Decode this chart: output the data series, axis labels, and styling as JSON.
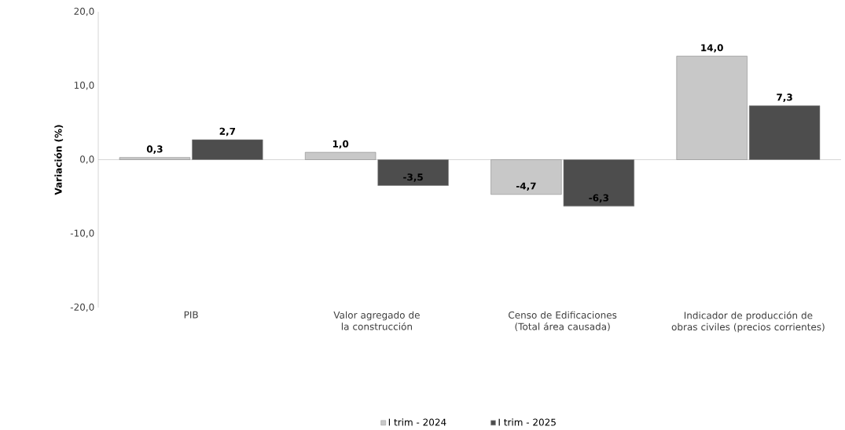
{
  "chart_data": {
    "type": "bar",
    "ylabel": "**Variación  (%)**",
    "categories": [
      "PIB",
      "Valor agregado de la construcción",
      "Censo de Edificaciones (Total área causada)",
      "Indicador de producción de obras civiles (precios corrientes)"
    ],
    "series": [
      {
        "name": "I trim - 2024",
        "color": "#c8c8c8",
        "values": [
          0.3,
          1.0,
          -4.7,
          14.0
        ],
        "value_labels": [
          "0,3",
          "1,0",
          "-4,7",
          "14,0"
        ]
      },
      {
        "name": "I trim - 2025",
        "color": "#4d4d4d",
        "values": [
          2.7,
          -3.5,
          -6.3,
          7.3
        ],
        "value_labels": [
          "2,7",
          "-3,5",
          "-6,3",
          "7,3"
        ]
      }
    ],
    "ylim": [
      -20,
      20
    ],
    "yticks": [
      {
        "value": -20,
        "label": "-20,0"
      },
      {
        "value": -10,
        "label": "-10,0"
      },
      {
        "value": 0,
        "label": "0,0"
      },
      {
        "value": 10,
        "label": "10,0"
      },
      {
        "value": 20,
        "label": "20,0"
      }
    ],
    "legend": "bottom"
  }
}
